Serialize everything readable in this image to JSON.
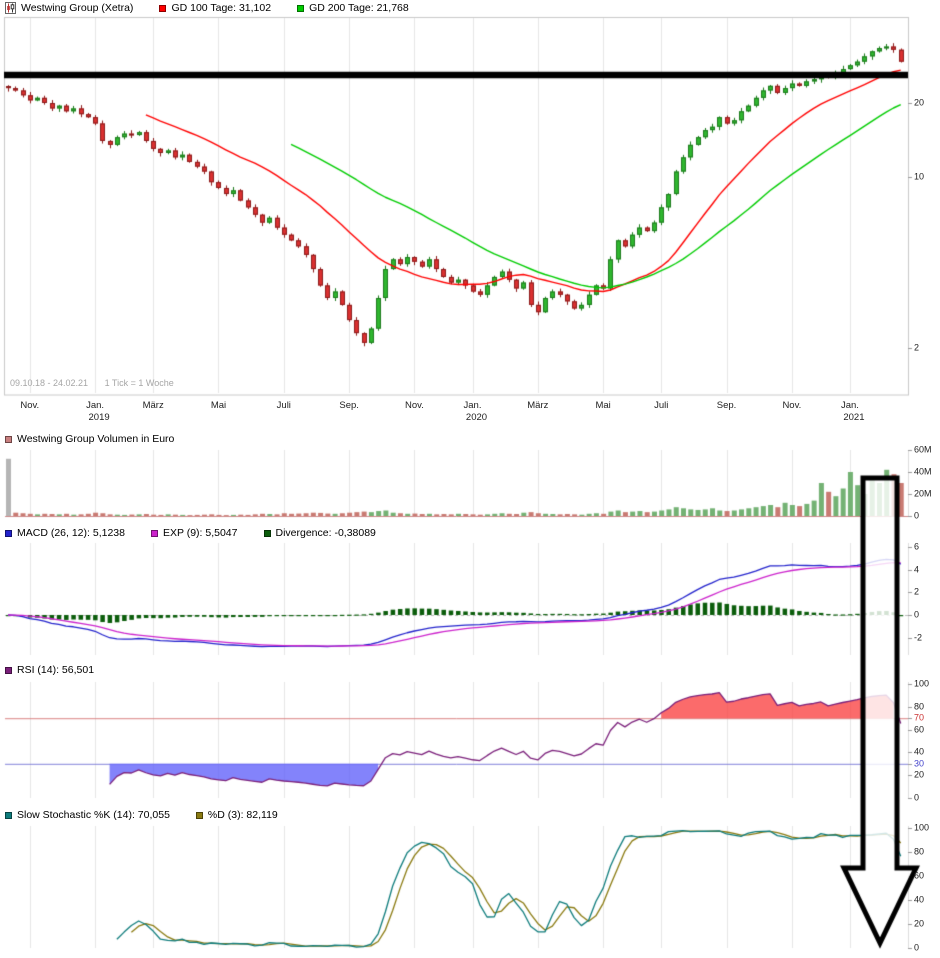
{
  "colors": {
    "gd100": "#ff0000",
    "gd200": "#00cc00",
    "volume_legend": "#c98080",
    "volume_up": "#74b274",
    "volume_down": "#c97a72",
    "volume_neutral": "#b5b5b5",
    "macd": "#2222cc",
    "signal": "#cc22cc",
    "divergence": "#0b5d0b",
    "rsi": "#7a1f7a",
    "rsi_upper_line": "#d98080",
    "rsi_lower_line": "#8080d9",
    "rsi_upper_fill": "rgba(250,70,70,0.8)",
    "rsi_lower_fill": "rgba(100,100,250,0.8)",
    "stoch_k": "#0e7c7c",
    "stoch_d": "#8a7a10",
    "candle_up": "#2fb52f",
    "candle_down": "#d93030",
    "candle_up_edge": "#1d7a1d",
    "candle_down_edge": "#8b1b1b",
    "annotation": "#000000",
    "grid": "#e6e6e6",
    "frame": "#c8c8c8"
  },
  "legends": {
    "main": {
      "instrument": "Westwing Group (Xetra)",
      "gd100": "GD 100 Tage: 31,102",
      "gd200": "GD 200 Tage: 21,768"
    },
    "volume": {
      "label": "Westwing Group Volumen in Euro"
    },
    "macd": {
      "macd": "MACD (26, 12): 5,1238",
      "exp": "EXP (9): 5,5047",
      "divergence": "Divergence: -0,38089"
    },
    "rsi": {
      "label": "RSI (14): 56,501"
    },
    "stoch": {
      "k": "Slow Stochastic %K (14): 70,055",
      "d": "%D (3): 82,119"
    }
  },
  "note": {
    "range": "09.10.18 - 24.02.21",
    "tick": "1 Tick = 1 Woche"
  },
  "chart_data": [
    {
      "type": "candlestick",
      "name": "Westwing Group (Xetra)",
      "date_range": "09.10.18 - 24.02.21",
      "tick_note": "1 Tick = 1 Woche",
      "x_unit": "week",
      "y_scale": "log",
      "y_ticks": [
        {
          "v": 20,
          "label": "20"
        },
        {
          "v": 10,
          "label": "10"
        },
        {
          "v": 2,
          "label": "2"
        }
      ],
      "x_ticks": [
        {
          "week": 3,
          "label": "Nov."
        },
        {
          "week": 12,
          "label": "Jan.",
          "year": "2019"
        },
        {
          "week": 20,
          "label": "März"
        },
        {
          "week": 29,
          "label": "Mai"
        },
        {
          "week": 38,
          "label": "Juli"
        },
        {
          "week": 47,
          "label": "Sep."
        },
        {
          "week": 56,
          "label": "Nov."
        },
        {
          "week": 64,
          "label": "Jan.",
          "year": "2020"
        },
        {
          "week": 73,
          "label": "März"
        },
        {
          "week": 82,
          "label": "Mai"
        },
        {
          "week": 90,
          "label": "Juli"
        },
        {
          "week": 99,
          "label": "Sep."
        },
        {
          "week": 108,
          "label": "Nov."
        },
        {
          "week": 116,
          "label": "Jan.",
          "year": "2021"
        }
      ],
      "closes": [
        23.0,
        22.5,
        21.5,
        20.5,
        21.0,
        20.0,
        19.0,
        19.5,
        18.5,
        19.0,
        18.0,
        17.5,
        16.5,
        14.0,
        13.5,
        14.5,
        15.0,
        14.8,
        15.2,
        14.0,
        13.0,
        12.5,
        12.8,
        12.0,
        12.3,
        11.5,
        11.0,
        10.5,
        9.5,
        9.0,
        8.5,
        8.8,
        8.0,
        7.5,
        7.0,
        6.5,
        6.8,
        6.2,
        5.8,
        5.5,
        5.2,
        4.8,
        4.2,
        3.6,
        3.2,
        3.4,
        3.0,
        2.6,
        2.3,
        2.1,
        2.4,
        3.2,
        4.2,
        4.6,
        4.4,
        4.7,
        4.5,
        4.3,
        4.6,
        4.2,
        3.9,
        3.7,
        3.8,
        3.6,
        3.4,
        3.3,
        3.6,
        3.9,
        4.1,
        3.8,
        3.5,
        3.7,
        3.0,
        2.8,
        3.2,
        3.4,
        3.3,
        3.1,
        2.9,
        3.0,
        3.3,
        3.6,
        3.5,
        4.6,
        5.5,
        5.2,
        5.8,
        6.2,
        6.0,
        6.5,
        7.5,
        8.5,
        10.5,
        12.0,
        13.5,
        14.5,
        15.5,
        16.0,
        17.5,
        16.5,
        17.0,
        18.5,
        19.5,
        21.0,
        22.5,
        23.5,
        22.0,
        23.0,
        24.0,
        23.5,
        24.5,
        25.0,
        26.0,
        25.5,
        26.5,
        27.5,
        28.5,
        29.5,
        31.0,
        32.5,
        33.5,
        34.0,
        33.0,
        29.5
      ],
      "overlays": [
        {
          "name": "GD 100 Tage",
          "window_weeks": 20,
          "last_value": "31,102"
        },
        {
          "name": "GD 200 Tage",
          "window_weeks": 40,
          "last_value": "21,768"
        }
      ],
      "annotations": [
        {
          "type": "horizontal-line",
          "value": 26,
          "color": "#000000"
        },
        {
          "type": "down-arrow",
          "spans": "volume-to-stochastic",
          "color": "#000000"
        }
      ]
    },
    {
      "type": "bar",
      "name": "Westwing Group Volumen in Euro",
      "y_ticks": [
        {
          "v": 60,
          "label": "60M"
        },
        {
          "v": 40,
          "label": "40M"
        },
        {
          "v": 20,
          "label": "20M"
        },
        {
          "v": 0,
          "label": "0"
        }
      ],
      "values_millions": [
        52,
        3,
        2.5,
        2,
        1.5,
        2,
        1.8,
        1.5,
        2,
        1.2,
        1.5,
        2,
        3,
        2.5,
        1.5,
        1.2,
        1,
        1.3,
        1.5,
        1.8,
        1.2,
        1,
        1.5,
        1.2,
        1,
        0.8,
        1,
        1.2,
        1.5,
        1,
        0.8,
        1,
        1.2,
        1,
        1.5,
        2,
        1.8,
        1.5,
        2.5,
        2,
        2.2,
        2.5,
        3,
        2.8,
        2.2,
        2,
        2.5,
        3,
        3.5,
        4,
        3.5,
        4.5,
        5,
        3,
        2.5,
        2,
        2.2,
        1.8,
        2,
        1.5,
        1.8,
        1.5,
        2,
        1.8,
        1.5,
        1.2,
        1.5,
        2,
        2.5,
        2,
        1.8,
        3,
        3.5,
        2.5,
        2,
        1.8,
        1.5,
        1.8,
        1.5,
        1.2,
        2,
        2.5,
        2,
        4,
        5,
        3.5,
        4,
        4.5,
        3.5,
        4,
        5,
        6,
        8,
        7,
        6,
        5.5,
        6,
        7,
        5,
        4.5,
        5,
        6,
        7,
        8,
        9,
        10,
        8,
        12,
        10,
        9,
        11,
        14,
        30,
        22,
        18,
        25,
        40,
        28,
        20,
        35,
        30,
        42,
        38,
        30
      ]
    },
    {
      "type": "line",
      "name": "MACD",
      "params": {
        "fast": 12,
        "slow": 26,
        "signal": 9
      },
      "last_values": {
        "macd": "5,1238",
        "exp": "5,5047",
        "divergence": "-0,38089"
      },
      "y_ticks": [
        {
          "v": 6,
          "label": "6"
        },
        {
          "v": 4,
          "label": "4"
        },
        {
          "v": 2,
          "label": "2"
        },
        {
          "v": 0,
          "label": "0"
        },
        {
          "v": -2,
          "label": "-2"
        }
      ]
    },
    {
      "type": "line",
      "name": "RSI",
      "period": 14,
      "last_value": "56,501",
      "upper_threshold": 70,
      "lower_threshold": 30,
      "y_ticks": [
        {
          "v": 100,
          "label": "100"
        },
        {
          "v": 80,
          "label": "80"
        },
        {
          "v": 70,
          "label": "70",
          "color": "#cc3333"
        },
        {
          "v": 60,
          "label": "60"
        },
        {
          "v": 40,
          "label": "40"
        },
        {
          "v": 30,
          "label": "30",
          "color": "#4444cc"
        },
        {
          "v": 20,
          "label": "20"
        },
        {
          "v": 0,
          "label": "0"
        }
      ]
    },
    {
      "type": "line",
      "name": "Slow Stochastic",
      "k_period": 14,
      "d_period": 3,
      "last_values": {
        "k": "70,055",
        "d": "82,119"
      },
      "y_ticks": [
        {
          "v": 100,
          "label": "100"
        },
        {
          "v": 80,
          "label": "80"
        },
        {
          "v": 60,
          "label": "60"
        },
        {
          "v": 40,
          "label": "40"
        },
        {
          "v": 20,
          "label": "20"
        },
        {
          "v": 0,
          "label": "0"
        }
      ]
    }
  ]
}
